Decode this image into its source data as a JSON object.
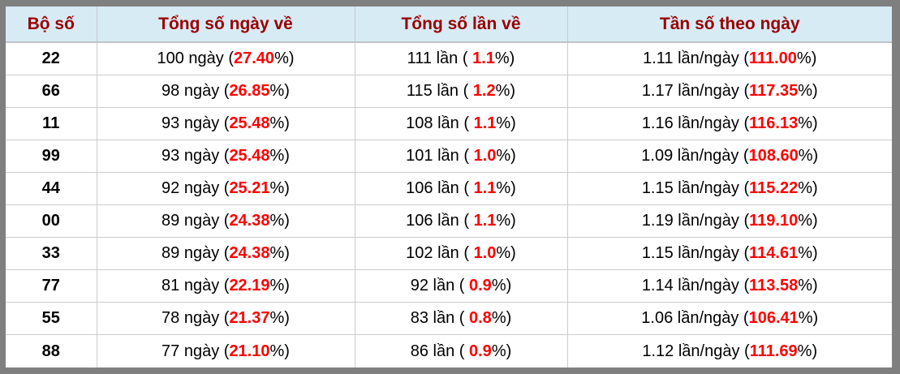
{
  "colors": {
    "frame_gray": "#7f7f7f",
    "header_bg": "#d7ebf5",
    "header_text": "#990000",
    "highlight_red": "#ff0000",
    "cell_border": "#cccccc",
    "body_text": "#000000"
  },
  "table": {
    "headers": [
      {
        "label": "Bộ số"
      },
      {
        "label": "Tổng số ngày về"
      },
      {
        "label": "Tổng số lần về"
      },
      {
        "label": "Tần số theo ngày"
      }
    ],
    "rows": [
      {
        "pair": "22",
        "days": {
          "pre": "100 ngày (",
          "red": "27.40",
          "post": "%)"
        },
        "times": {
          "pre": "111 lần ( ",
          "red": "1.1",
          "post": "%)"
        },
        "freq": {
          "pre": "1.11 lần/ngày (",
          "red": "111.00",
          "post": "%)"
        }
      },
      {
        "pair": "66",
        "days": {
          "pre": "98 ngày (",
          "red": "26.85",
          "post": "%)"
        },
        "times": {
          "pre": "115 lần ( ",
          "red": "1.2",
          "post": "%)"
        },
        "freq": {
          "pre": "1.17 lần/ngày (",
          "red": "117.35",
          "post": "%)"
        }
      },
      {
        "pair": "11",
        "days": {
          "pre": "93 ngày (",
          "red": "25.48",
          "post": "%)"
        },
        "times": {
          "pre": "108 lần ( ",
          "red": "1.1",
          "post": "%)"
        },
        "freq": {
          "pre": "1.16 lần/ngày (",
          "red": "116.13",
          "post": "%)"
        }
      },
      {
        "pair": "99",
        "days": {
          "pre": "93 ngày (",
          "red": "25.48",
          "post": "%)"
        },
        "times": {
          "pre": "101 lần ( ",
          "red": "1.0",
          "post": "%)"
        },
        "freq": {
          "pre": "1.09 lần/ngày (",
          "red": "108.60",
          "post": "%)"
        }
      },
      {
        "pair": "44",
        "days": {
          "pre": "92 ngày (",
          "red": "25.21",
          "post": "%)"
        },
        "times": {
          "pre": "106 lần ( ",
          "red": "1.1",
          "post": "%)"
        },
        "freq": {
          "pre": "1.15 lần/ngày (",
          "red": "115.22",
          "post": "%)"
        }
      },
      {
        "pair": "00",
        "days": {
          "pre": "89 ngày (",
          "red": "24.38",
          "post": "%)"
        },
        "times": {
          "pre": "106 lần ( ",
          "red": "1.1",
          "post": "%)"
        },
        "freq": {
          "pre": "1.19 lần/ngày (",
          "red": "119.10",
          "post": "%)"
        }
      },
      {
        "pair": "33",
        "days": {
          "pre": "89 ngày (",
          "red": "24.38",
          "post": "%)"
        },
        "times": {
          "pre": "102 lần ( ",
          "red": "1.0",
          "post": "%)"
        },
        "freq": {
          "pre": "1.15 lần/ngày (",
          "red": "114.61",
          "post": "%)"
        }
      },
      {
        "pair": "77",
        "days": {
          "pre": "81 ngày (",
          "red": "22.19",
          "post": "%)"
        },
        "times": {
          "pre": "92 lần ( ",
          "red": "0.9",
          "post": "%)"
        },
        "freq": {
          "pre": "1.14 lần/ngày (",
          "red": "113.58",
          "post": "%)"
        }
      },
      {
        "pair": "55",
        "days": {
          "pre": "78 ngày (",
          "red": "21.37",
          "post": "%)"
        },
        "times": {
          "pre": "83 lần ( ",
          "red": "0.8",
          "post": "%)"
        },
        "freq": {
          "pre": "1.06 lần/ngày (",
          "red": "106.41",
          "post": "%)"
        }
      },
      {
        "pair": "88",
        "days": {
          "pre": "77 ngày (",
          "red": "21.10",
          "post": "%)"
        },
        "times": {
          "pre": "86 lần ( ",
          "red": "0.9",
          "post": "%)"
        },
        "freq": {
          "pre": "1.12 lần/ngày (",
          "red": "111.69",
          "post": "%)"
        }
      }
    ]
  }
}
